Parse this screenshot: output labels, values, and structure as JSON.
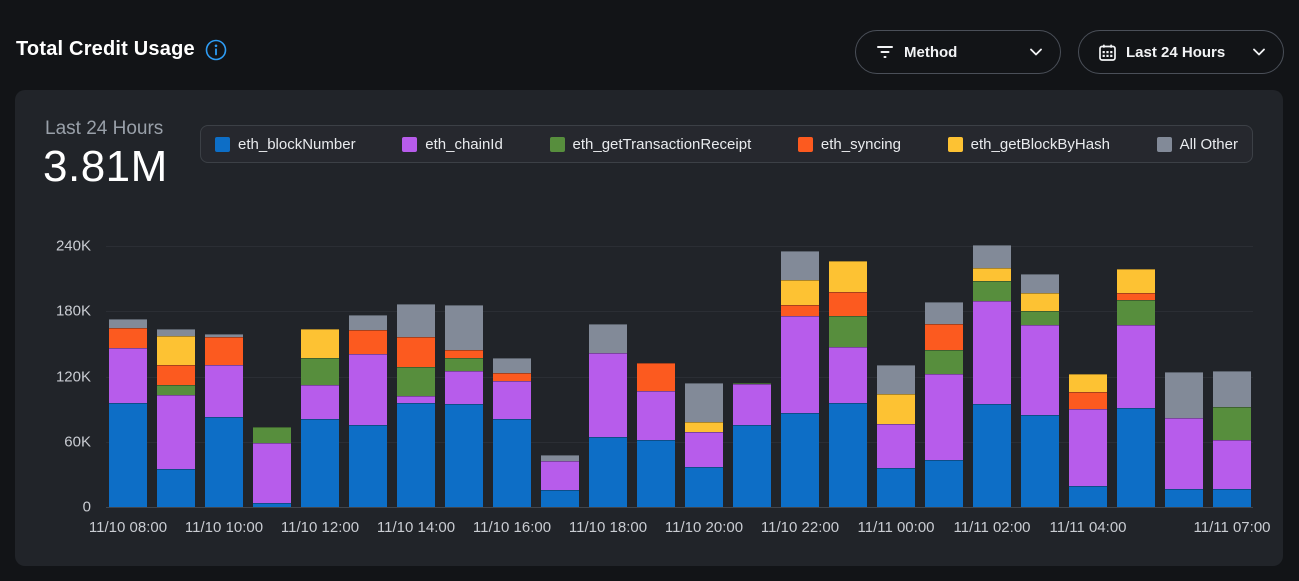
{
  "header": {
    "title": "Total Credit Usage",
    "method_filter": {
      "label": "Method"
    },
    "time_filter": {
      "label": "Last 24 Hours"
    }
  },
  "panel": {
    "summary_label": "Last 24 Hours",
    "summary_value": "3.81M"
  },
  "colors": {
    "page_bg": "#121417",
    "panel_bg": "#212429",
    "accent_info": "#2e9df5"
  },
  "chart_data": {
    "type": "bar",
    "stacked": true,
    "title": "Total Credit Usage",
    "total_label": "3.81M",
    "values_unit": "thousands of credits",
    "ylim_k": [
      0,
      240
    ],
    "y_ticks": [
      {
        "label": "0",
        "value": 0
      },
      {
        "label": "60K",
        "value": 60
      },
      {
        "label": "120K",
        "value": 120
      },
      {
        "label": "180K",
        "value": 180
      },
      {
        "label": "240K",
        "value": 240
      }
    ],
    "x_ticks": [
      {
        "label": "11/10 08:00",
        "bar": 0
      },
      {
        "label": "11/10 10:00",
        "bar": 2
      },
      {
        "label": "11/10 12:00",
        "bar": 4
      },
      {
        "label": "11/10 14:00",
        "bar": 6
      },
      {
        "label": "11/10 16:00",
        "bar": 8
      },
      {
        "label": "11/10 18:00",
        "bar": 10
      },
      {
        "label": "11/10 20:00",
        "bar": 12
      },
      {
        "label": "11/10 22:00",
        "bar": 14
      },
      {
        "label": "11/11 00:00",
        "bar": 16
      },
      {
        "label": "11/11 02:00",
        "bar": 18
      },
      {
        "label": "11/11 04:00",
        "bar": 20
      },
      {
        "label": "11/11 07:00",
        "bar": 23
      }
    ],
    "bar_count": 24,
    "series": [
      {
        "name": "eth_blockNumber",
        "color": "#0d6ec6",
        "values_k": [
          96,
          35,
          83,
          4,
          81,
          75,
          96,
          95,
          81,
          16,
          64,
          62,
          37,
          75,
          86,
          96,
          36,
          43,
          95,
          85,
          19,
          91,
          17,
          17
        ]
      },
      {
        "name": "eth_chainId",
        "color": "#b75ceb",
        "values_k": [
          50,
          68,
          48,
          55,
          31,
          66,
          6,
          30,
          35,
          26,
          78,
          45,
          32,
          38,
          90,
          51,
          40,
          79,
          94,
          82,
          71,
          76,
          65,
          45
        ]
      },
      {
        "name": "eth_getTransactionReceipt",
        "color": "#578e3d",
        "values_k": [
          0,
          9,
          0,
          15,
          25,
          0,
          27,
          12,
          0,
          0,
          0,
          0,
          0,
          1,
          0,
          29,
          0,
          22,
          19,
          13,
          0,
          23,
          0,
          30
        ]
      },
      {
        "name": "eth_syncing",
        "color": "#fc5a1f",
        "values_k": [
          19,
          19,
          25,
          0,
          0,
          22,
          27,
          7,
          7,
          0,
          0,
          25,
          0,
          0,
          10,
          22,
          0,
          24,
          0,
          0,
          16,
          7,
          0,
          0
        ]
      },
      {
        "name": "eth_getBlockByHash",
        "color": "#fdc233",
        "values_k": [
          0,
          26,
          0,
          0,
          27,
          0,
          0,
          0,
          0,
          0,
          0,
          0,
          9,
          0,
          23,
          28,
          28,
          0,
          12,
          17,
          16,
          22,
          0,
          0
        ]
      },
      {
        "name": "All Other",
        "color": "#828a98",
        "values_k": [
          8,
          7,
          3,
          0,
          0,
          14,
          31,
          42,
          14,
          6,
          26,
          0,
          36,
          0,
          26,
          0,
          27,
          21,
          21,
          17,
          0,
          0,
          42,
          33
        ]
      }
    ],
    "legend_position": "top"
  }
}
